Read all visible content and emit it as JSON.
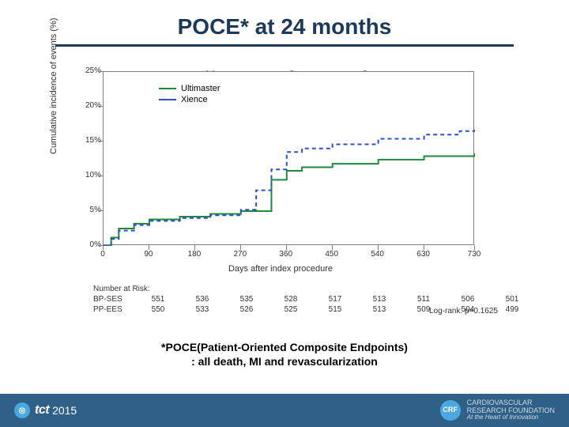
{
  "title": "POCE* at 24 months",
  "title_color": "#1b3a5b",
  "rule_color": "#1b3a5b",
  "chart": {
    "type": "line",
    "y_label": "Cumulative incidence of events (%)",
    "x_label": "Days after index procedure",
    "ylim": [
      0,
      25
    ],
    "xlim": [
      0,
      730
    ],
    "ytick_values": [
      0,
      5,
      10,
      15,
      20,
      25
    ],
    "ytick_labels": [
      "0%",
      "5%",
      "10%",
      "15%",
      "20%",
      "25%"
    ],
    "xtick_values": [
      0,
      90,
      180,
      270,
      360,
      450,
      540,
      630,
      730
    ],
    "axis_color": "#808080",
    "label_color": "#333333",
    "label_fontsize": 11,
    "tick_fontsize": 10,
    "legend": {
      "items": [
        {
          "label": "Ultimaster",
          "color": "#1f8a3b"
        },
        {
          "label": "Xience",
          "color": "#2a4fcf"
        }
      ]
    },
    "series": [
      {
        "name": "Ultimaster",
        "color": "#1f8a3b",
        "line_width": 2,
        "dash": "none",
        "x": [
          0,
          15,
          30,
          60,
          90,
          150,
          210,
          270,
          330,
          360,
          390,
          450,
          540,
          630,
          730
        ],
        "y": [
          0,
          1.2,
          2.5,
          3.2,
          3.8,
          4.2,
          4.6,
          5.0,
          9.5,
          10.8,
          11.3,
          11.8,
          12.4,
          12.9,
          13.3
        ]
      },
      {
        "name": "Xience",
        "color": "#2a4fcf",
        "line_width": 2,
        "dash": "5,4",
        "x": [
          0,
          15,
          30,
          60,
          90,
          150,
          210,
          270,
          300,
          330,
          360,
          390,
          450,
          540,
          630,
          700,
          730
        ],
        "y": [
          0,
          1.0,
          2.2,
          3.0,
          3.6,
          4.0,
          4.4,
          5.2,
          8.0,
          11.0,
          13.5,
          14.0,
          14.6,
          15.4,
          16.0,
          16.5,
          16.9
        ]
      }
    ]
  },
  "stats": {
    "lines": [
      "Ultimaster: 13. 3% [10. 7%; 16. 4%]",
      "Xience:         16. 9% [14. 0% ; 20. 3%]"
    ]
  },
  "number_at_risk": {
    "title": "Number at Risk:",
    "rows": [
      {
        "label": "BP-SES",
        "values": [
          "551",
          "536",
          "535",
          "528",
          "517",
          "513",
          "511",
          "506",
          "501"
        ]
      },
      {
        "label": "PP-EES",
        "values": [
          "550",
          "533",
          "526",
          "525",
          "515",
          "513",
          "509",
          "504",
          "499"
        ]
      }
    ]
  },
  "logrank": "Log-rank: p=0.1625",
  "footnote": {
    "line1": "*POCE(Patient-Oriented Composite Endpoints)",
    "line2": ": all death, MI and revascularization"
  },
  "footer": {
    "bg": "#2f6188",
    "left_logo": "tct",
    "left_year": "2015",
    "right_abbr": "CRF",
    "right_line1": "CARDIOVASCULAR",
    "right_line2": "RESEARCH FOUNDATION",
    "right_tag": "At the Heart of Innovation"
  }
}
